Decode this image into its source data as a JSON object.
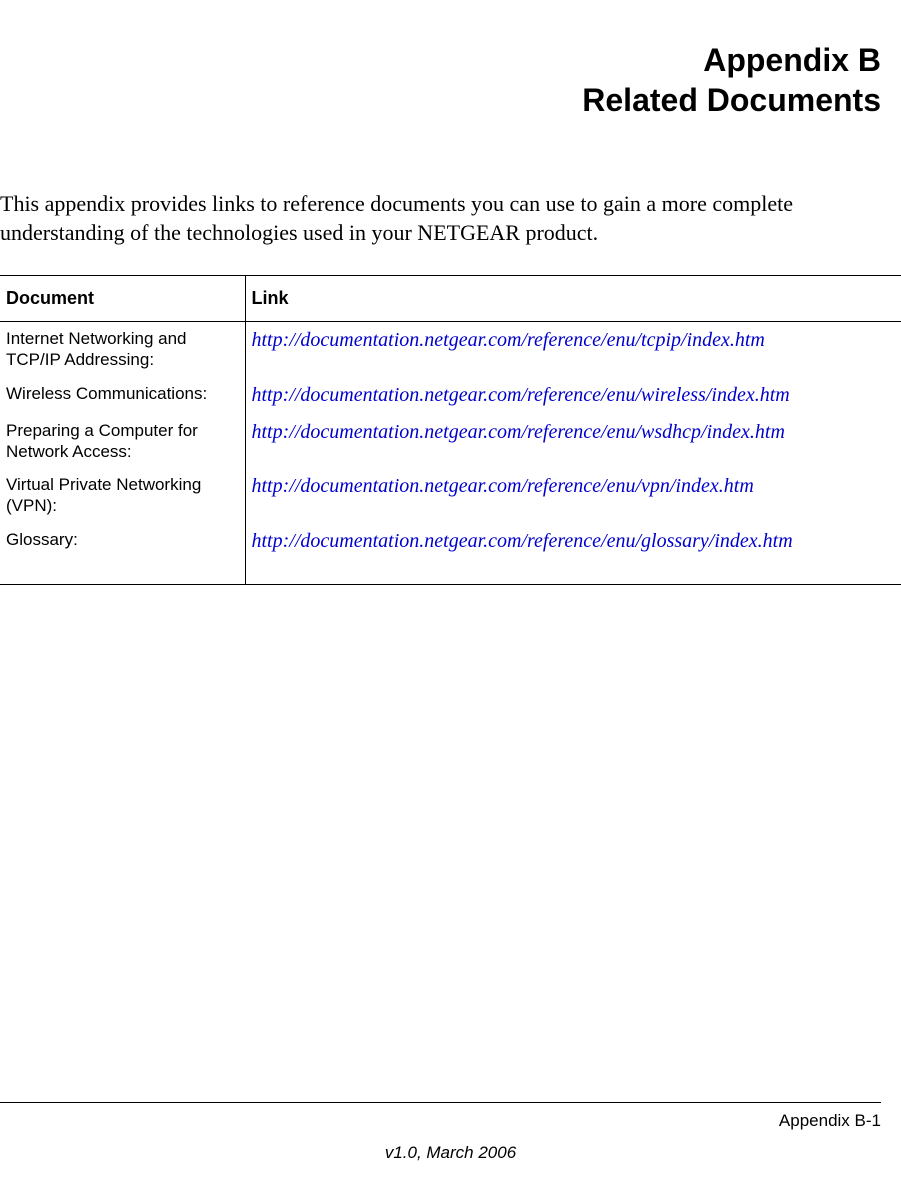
{
  "title": {
    "line1": "Appendix B",
    "line2": "Related Documents"
  },
  "intro": "This appendix provides links to reference documents you can use to gain a more complete understanding of the technologies used in your NETGEAR product.",
  "table": {
    "headers": {
      "doc": "Document",
      "link": "Link"
    },
    "rows": [
      {
        "doc": "Internet Networking and TCP/IP Addressing:",
        "link": "http://documentation.netgear.com/reference/enu/tcpip/index.htm"
      },
      {
        "doc": "Wireless Communications:",
        "link": "http://documentation.netgear.com/reference/enu/wireless/index.htm"
      },
      {
        "doc": "Preparing a Computer for Network Access:",
        "link": "http://documentation.netgear.com/reference/enu/wsdhcp/index.htm"
      },
      {
        "doc": "Virtual Private Networking (VPN):",
        "link": "http://documentation.netgear.com/reference/enu/vpn/index.htm"
      },
      {
        "doc": "Glossary:",
        "link": "http://documentation.netgear.com/reference/enu/glossary/index.htm"
      }
    ]
  },
  "footer": {
    "page_label": "Appendix B-1",
    "version": "v1.0, March 2006"
  },
  "colors": {
    "link": "#0000cc",
    "text": "#000000",
    "rule": "#000000",
    "background": "#ffffff"
  }
}
